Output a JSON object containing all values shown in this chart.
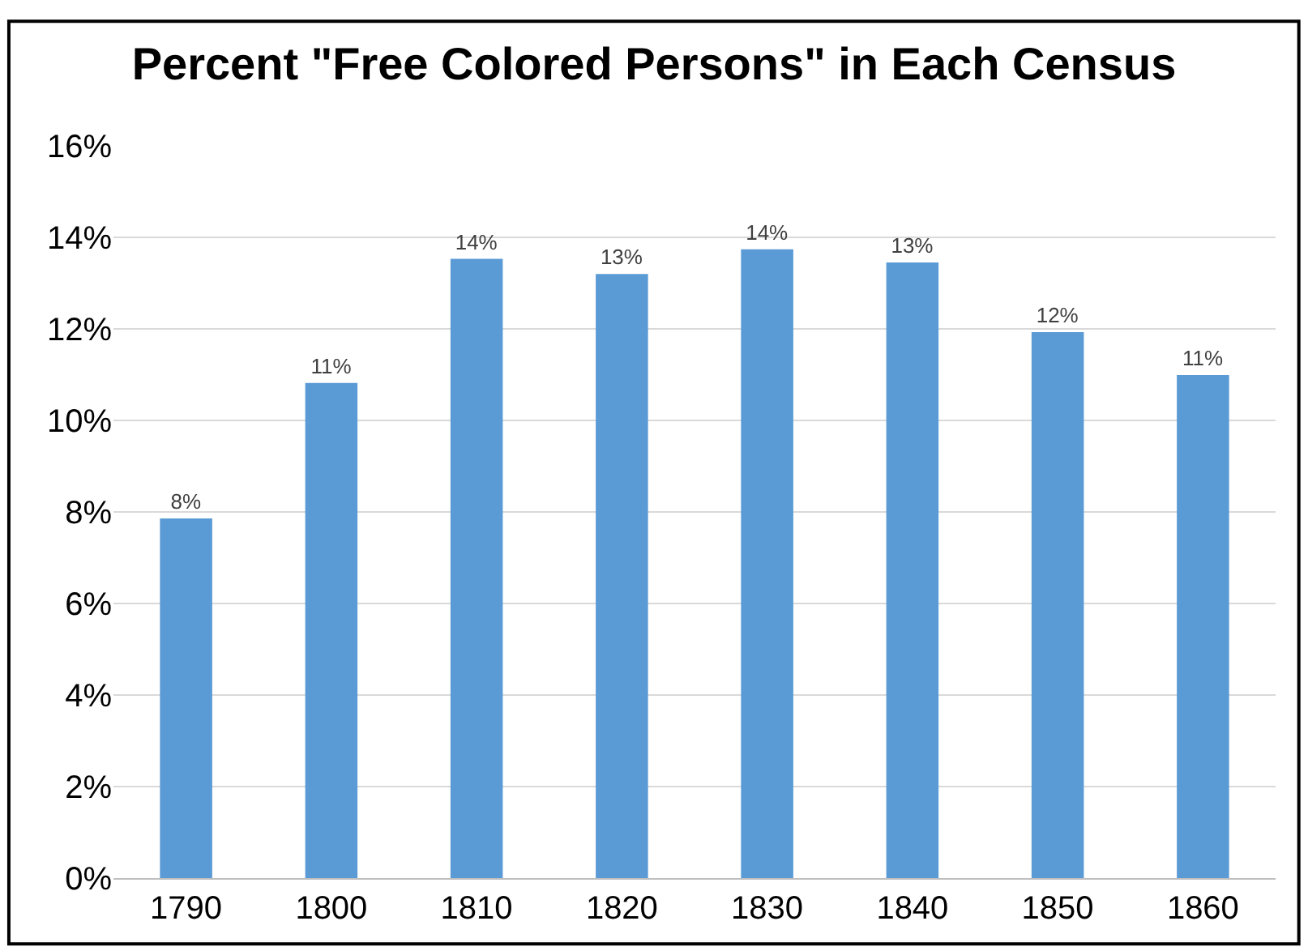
{
  "chart_data": {
    "type": "bar",
    "title": "Percent \"Free Colored Persons\" in Each Census",
    "categories": [
      "1790",
      "1800",
      "1810",
      "1820",
      "1830",
      "1840",
      "1850",
      "1860"
    ],
    "values": [
      7.86,
      10.82,
      13.53,
      13.2,
      13.74,
      13.45,
      11.93,
      10.99
    ],
    "value_labels": [
      "8%",
      "11%",
      "14%",
      "13%",
      "14%",
      "13%",
      "12%",
      "11%"
    ],
    "color": "#5b9bd5",
    "ylim": [
      0,
      16
    ],
    "yticks": [
      {
        "value": 0,
        "label": "0%"
      },
      {
        "value": 2,
        "label": "2%"
      },
      {
        "value": 4,
        "label": "4%"
      },
      {
        "value": 6,
        "label": "6%"
      },
      {
        "value": 8,
        "label": "8%"
      },
      {
        "value": 10,
        "label": "10%"
      },
      {
        "value": 12,
        "label": "12%"
      },
      {
        "value": 14,
        "label": "14%"
      },
      {
        "value": 16,
        "label": "16%"
      }
    ],
    "grid": "y",
    "legend": false
  }
}
